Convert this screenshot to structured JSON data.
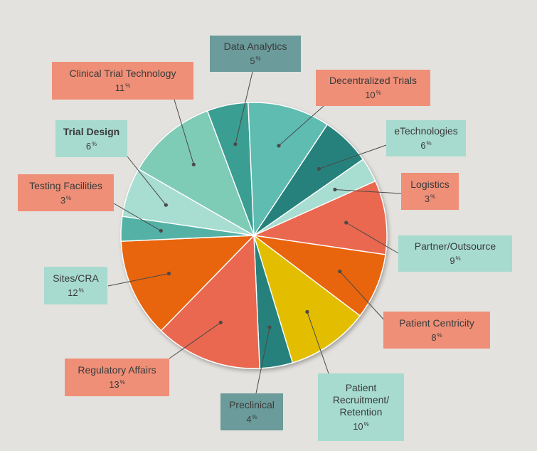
{
  "chart_data": {
    "type": "pie",
    "unit": "%",
    "slices": [
      {
        "label": "Data Analytics",
        "value": 5,
        "color": "#3a9e92",
        "box_color": "#6b9b9a"
      },
      {
        "label": "Decentralized Trials",
        "value": 10,
        "color": "#5fbcb1",
        "box_color": "#ef8f77"
      },
      {
        "label": "eTechnologies",
        "value": 6,
        "color": "#25817c",
        "box_color": "#a7dbcf"
      },
      {
        "label": "Logistics",
        "value": 3,
        "color": "#a8ddd1",
        "box_color": "#ef8f77"
      },
      {
        "label": "Partner/Outsource",
        "value": 9,
        "color": "#ea684f",
        "box_color": "#a7dbcf"
      },
      {
        "label": "Patient Centricity",
        "value": 8,
        "color": "#e8650f",
        "box_color": "#ef8f77"
      },
      {
        "label": "Patient Recruitment/ Retention",
        "value": 10,
        "color": "#e3be00",
        "box_color": "#a7dbcf"
      },
      {
        "label": "Preclinical",
        "value": 4,
        "color": "#25817c",
        "box_color": "#6b9b9a"
      },
      {
        "label": "Regulatory Affairs",
        "value": 13,
        "color": "#ea684f",
        "box_color": "#ef8f77"
      },
      {
        "label": "Sites/CRA",
        "value": 12,
        "color": "#e8650f",
        "box_color": "#a7dbcf"
      },
      {
        "label": "Testing Facilities",
        "value": 3,
        "color": "#52b2a5",
        "box_color": "#ef8f77"
      },
      {
        "label": "Trial Design",
        "value": 6,
        "color": "#a8ddd1",
        "box_color": "#a7dbcf",
        "bold": true
      },
      {
        "label": "Clinical Trial Technology",
        "value": 11,
        "color": "#7ecbb6",
        "box_color": "#ef8f77"
      }
    ]
  }
}
